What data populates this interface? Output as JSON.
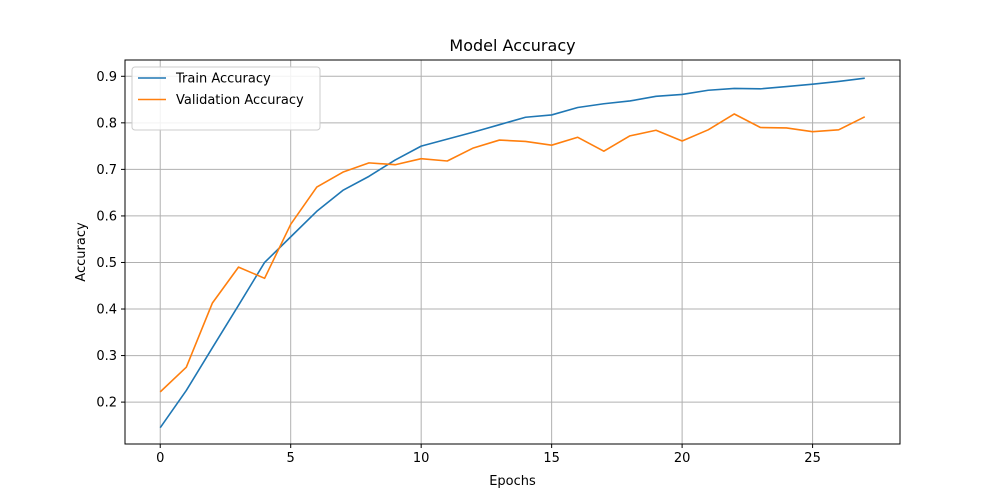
{
  "chart_data": {
    "type": "line",
    "title": "Model Accuracy",
    "xlabel": "Epochs",
    "ylabel": "Accuracy",
    "xlim": [
      -1.35,
      28.35
    ],
    "ylim": [
      0.11,
      0.935
    ],
    "xticks": [
      0,
      5,
      10,
      15,
      20,
      25
    ],
    "yticks": [
      0.2,
      0.3,
      0.4,
      0.5,
      0.6,
      0.7,
      0.8,
      0.9
    ],
    "grid": true,
    "legend_position": "top-left",
    "x": [
      0,
      1,
      2,
      3,
      4,
      5,
      6,
      7,
      8,
      9,
      10,
      11,
      12,
      13,
      14,
      15,
      16,
      17,
      18,
      19,
      20,
      21,
      22,
      23,
      24,
      25,
      26,
      27
    ],
    "series": [
      {
        "name": "Train Accuracy",
        "color": "#1f77b4",
        "values": [
          0.145,
          0.225,
          0.317,
          0.408,
          0.5,
          0.555,
          0.61,
          0.655,
          0.685,
          0.72,
          0.75,
          0.765,
          0.78,
          0.796,
          0.812,
          0.817,
          0.833,
          0.841,
          0.847,
          0.857,
          0.861,
          0.87,
          0.874,
          0.873,
          0.878,
          0.883,
          0.889,
          0.896
        ]
      },
      {
        "name": "Validation Accuracy",
        "color": "#ff7f0e",
        "values": [
          0.222,
          0.275,
          0.413,
          0.49,
          0.466,
          0.582,
          0.662,
          0.694,
          0.714,
          0.71,
          0.723,
          0.718,
          0.746,
          0.763,
          0.76,
          0.752,
          0.769,
          0.739,
          0.772,
          0.784,
          0.761,
          0.785,
          0.819,
          0.79,
          0.789,
          0.781,
          0.785,
          0.813
        ]
      }
    ]
  }
}
